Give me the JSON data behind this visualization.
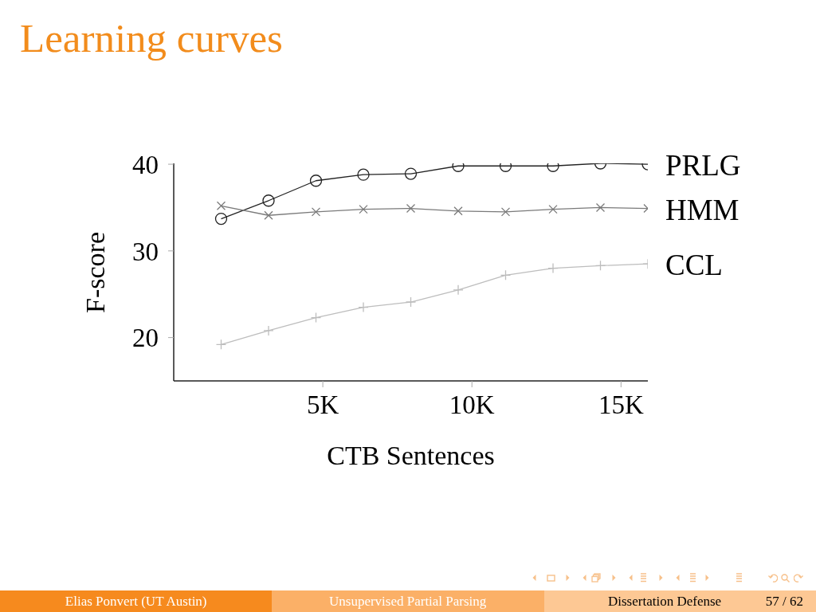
{
  "chart_data": {
    "type": "line",
    "title": "Learning curves",
    "xlabel": "CTB Sentences",
    "ylabel": "F-score",
    "x": [
      1590,
      3180,
      4770,
      6360,
      7950,
      9540,
      11130,
      12720,
      14310,
      15900
    ],
    "series": [
      {
        "name": "PRLG",
        "color": "#222222",
        "marker": "circle",
        "values": [
          33.7,
          35.8,
          38.1,
          38.8,
          38.9,
          39.8,
          39.8,
          39.8,
          40.1,
          40.0
        ]
      },
      {
        "name": "HMM",
        "color": "#7a7a7a",
        "marker": "x",
        "values": [
          35.2,
          34.1,
          34.5,
          34.8,
          34.9,
          34.6,
          34.5,
          34.8,
          35.0,
          34.9
        ]
      },
      {
        "name": "CCL",
        "color": "#bdbdbd",
        "marker": "cross",
        "values": [
          19.2,
          20.8,
          22.3,
          23.5,
          24.1,
          25.5,
          27.2,
          28.0,
          28.3,
          28.5
        ]
      }
    ],
    "xlim": [
      0,
      15900
    ],
    "ylim": [
      15,
      40.1
    ],
    "xticks": [
      {
        "value": 5000,
        "label": "5K"
      },
      {
        "value": 10000,
        "label": "10K"
      },
      {
        "value": 15000,
        "label": "15K"
      }
    ],
    "yticks": [
      20,
      30,
      40
    ],
    "annotations": [
      "Elias Ponvert (UT Austin)",
      "Unsupervised Partial Parsing",
      "Dissertation Defense",
      "57 / 62"
    ]
  }
}
